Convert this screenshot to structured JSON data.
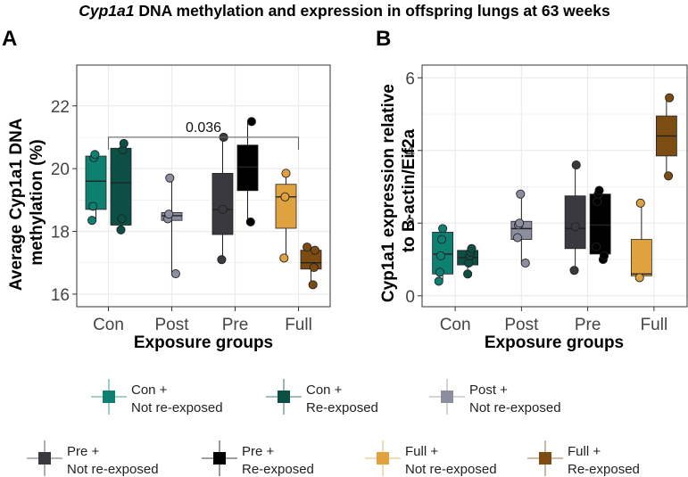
{
  "figure": {
    "title_italic": "Cyp1a1",
    "title_rest": " DNA methylation and expression in offspring lungs at 63 weeks"
  },
  "colors": {
    "con_not": "#0e8072",
    "con_re": "#0c4f45",
    "post_not": "#8b8e9f",
    "pre_not": "#3a393f",
    "pre_re": "#000000",
    "full_not": "#e0a13f",
    "full_re": "#7c4c13"
  },
  "legend": [
    {
      "line1": "Con +",
      "line2": "Not re-exposed",
      "color": "#0e8072"
    },
    {
      "line1": "Con +",
      "line2": "Re-exposed",
      "color": "#0c4f45"
    },
    {
      "line1": "Post +",
      "line2": "Not re-exposed",
      "color": "#8b8e9f"
    },
    {
      "line1": "Pre +",
      "line2": "Not re-exposed",
      "color": "#3a393f"
    },
    {
      "line1": "Pre +",
      "line2": "Re-exposed",
      "color": "#000000"
    },
    {
      "line1": "Full +",
      "line2": "Not re-exposed",
      "color": "#e0a13f"
    },
    {
      "line1": "Full +",
      "line2": "Re-exposed",
      "color": "#7c4c13"
    }
  ],
  "chart_data": [
    {
      "panel": "A",
      "type": "box",
      "title": "",
      "xlabel": "Exposure groups",
      "ylabel_line1": "Average Cyp1a1 DNA",
      "ylabel_line2": "methylation (%)",
      "ylim": [
        15.6,
        23.3
      ],
      "yticks": [
        16,
        18,
        20,
        22
      ],
      "categories": [
        "Con",
        "Post",
        "Pre",
        "Full"
      ],
      "annotation": {
        "text": "0.036",
        "from": "Con",
        "to": "Full",
        "y": 21.0
      },
      "boxes": [
        {
          "category": "Con",
          "group": "Not re-exposed",
          "color": "#0e8072",
          "min": 18.35,
          "q1": 18.7,
          "median": 19.6,
          "q3": 20.4,
          "max": 20.45,
          "points": [
            18.35,
            18.8,
            20.35,
            20.45
          ]
        },
        {
          "category": "Con",
          "group": "Re-exposed",
          "color": "#0c4f45",
          "min": 18.05,
          "q1": 18.2,
          "median": 19.55,
          "q3": 20.65,
          "max": 20.8,
          "points": [
            18.05,
            18.4,
            20.6,
            20.8
          ]
        },
        {
          "category": "Post",
          "group": "Not re-exposed",
          "color": "#8b8e9f",
          "min": 16.65,
          "q1": 18.35,
          "median": 18.5,
          "q3": 18.6,
          "max": 19.7,
          "points": [
            16.65,
            18.4,
            18.55,
            19.7
          ]
        },
        {
          "category": "Pre",
          "group": "Not re-exposed",
          "color": "#3a393f",
          "min": 17.1,
          "q1": 17.9,
          "median": 18.7,
          "q3": 19.85,
          "max": 21.0,
          "points": [
            17.1,
            18.7,
            21.0
          ]
        },
        {
          "category": "Pre",
          "group": "Re-exposed",
          "color": "#000000",
          "min": 18.3,
          "q1": 19.3,
          "median": 20.05,
          "q3": 20.75,
          "max": 21.5,
          "points": [
            18.3,
            21.5
          ]
        },
        {
          "category": "Full",
          "group": "Not re-exposed",
          "color": "#e0a13f",
          "min": 17.15,
          "q1": 18.1,
          "median": 19.1,
          "q3": 19.5,
          "max": 19.85,
          "points": [
            17.15,
            19.1,
            19.85
          ]
        },
        {
          "category": "Full",
          "group": "Re-exposed",
          "color": "#7c4c13",
          "min": 16.3,
          "q1": 16.8,
          "median": 17.0,
          "q3": 17.4,
          "max": 17.5,
          "points": [
            16.3,
            16.85,
            17.4,
            17.5
          ]
        }
      ]
    },
    {
      "panel": "B",
      "type": "box",
      "title": "",
      "xlabel": "Exposure groups",
      "ylabel_line1": "Cyp1a1 expression relative",
      "ylabel_line2": "to B-actin/Eif2a",
      "ylim": [
        -0.3,
        6.35
      ],
      "yticks": [
        0,
        2,
        4,
        6
      ],
      "categories": [
        "Con",
        "Post",
        "Pre",
        "Full"
      ],
      "boxes": [
        {
          "category": "Con",
          "group": "Not re-exposed",
          "color": "#0e8072",
          "min": 0.4,
          "q1": 0.6,
          "median": 1.15,
          "q3": 1.75,
          "max": 1.85,
          "points": [
            0.4,
            0.65,
            1.1,
            1.55,
            1.85
          ]
        },
        {
          "category": "Con",
          "group": "Re-exposed",
          "color": "#0c4f45",
          "min": 0.6,
          "q1": 0.85,
          "median": 1.05,
          "q3": 1.25,
          "max": 1.3,
          "points": [
            0.6,
            0.9,
            1.1,
            1.2,
            1.3
          ]
        },
        {
          "category": "Post",
          "group": "Not re-exposed",
          "color": "#8b8e9f",
          "min": 0.9,
          "q1": 1.55,
          "median": 1.85,
          "q3": 2.05,
          "max": 2.8,
          "points": [
            0.9,
            1.6,
            1.95,
            2.0,
            2.8
          ]
        },
        {
          "category": "Pre",
          "group": "Not re-exposed",
          "color": "#3a393f",
          "min": 0.7,
          "q1": 1.3,
          "median": 1.85,
          "q3": 2.75,
          "max": 3.6,
          "points": [
            0.7,
            1.9,
            3.6
          ]
        },
        {
          "category": "Pre",
          "group": "Re-exposed",
          "color": "#000000",
          "min": 1.0,
          "q1": 1.15,
          "median": 1.95,
          "q3": 2.8,
          "max": 2.9,
          "points": [
            1.0,
            1.1,
            1.35,
            2.6,
            2.8,
            2.9
          ]
        },
        {
          "category": "Full",
          "group": "Not re-exposed",
          "color": "#e0a13f",
          "min": 0.5,
          "q1": 0.55,
          "median": 0.6,
          "q3": 1.55,
          "max": 2.55,
          "points": [
            0.5,
            2.55
          ]
        },
        {
          "category": "Full",
          "group": "Re-exposed",
          "color": "#7c4c13",
          "min": 3.3,
          "q1": 3.85,
          "median": 4.4,
          "q3": 4.95,
          "max": 5.45,
          "points": [
            3.3,
            5.45
          ]
        }
      ]
    }
  ]
}
